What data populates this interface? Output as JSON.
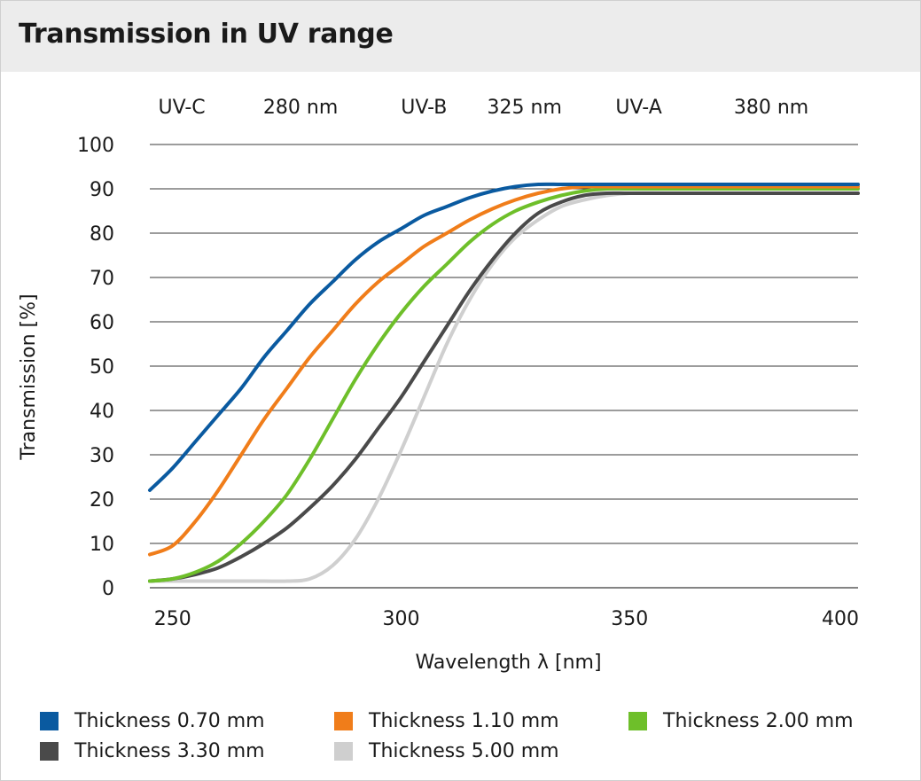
{
  "title": "Transmission in UV range",
  "chart_data": {
    "type": "line",
    "title": "Transmission in UV range",
    "xlabel": "Wavelength λ [nm]",
    "ylabel": "Transmission [%]",
    "xlim": [
      245,
      400
    ],
    "ylim": [
      0,
      100
    ],
    "xticks": [
      250,
      300,
      350,
      400
    ],
    "yticks": [
      0,
      10,
      20,
      30,
      40,
      50,
      60,
      70,
      80,
      90,
      100
    ],
    "grid": "horizontal",
    "legend_position": "bottom",
    "top_labels": [
      "UV-C",
      "280 nm",
      "UV-B",
      "325 nm",
      "UV-A",
      "380 nm"
    ],
    "top_label_x": [
      252,
      278,
      305,
      327,
      352,
      381
    ],
    "series": [
      {
        "name": "Thickness 0.70 mm",
        "color": "#0a5aa0",
        "x": [
          245,
          250,
          255,
          260,
          265,
          270,
          275,
          280,
          285,
          290,
          295,
          300,
          305,
          310,
          315,
          320,
          325,
          330,
          335,
          340,
          350,
          360,
          380,
          400
        ],
        "y": [
          22,
          27,
          33,
          39,
          45,
          52,
          58,
          64,
          69,
          74,
          78,
          81,
          84,
          86,
          88,
          89.5,
          90.5,
          91,
          91,
          91,
          91,
          91,
          91,
          91
        ]
      },
      {
        "name": "Thickness 1.10 mm",
        "color": "#f07d1a",
        "x": [
          245,
          250,
          255,
          260,
          265,
          270,
          275,
          280,
          285,
          290,
          295,
          300,
          305,
          310,
          315,
          320,
          325,
          330,
          335,
          340,
          345,
          350,
          360,
          380,
          400
        ],
        "y": [
          7.5,
          9.5,
          15,
          22,
          30,
          38,
          45,
          52,
          58,
          64,
          69,
          73,
          77,
          80,
          83,
          85.5,
          87.5,
          89,
          90,
          90.5,
          90.5,
          90.5,
          90.5,
          90.5,
          90.5
        ]
      },
      {
        "name": "Thickness 2.00 mm",
        "color": "#6ebf2a",
        "x": [
          245,
          250,
          255,
          260,
          265,
          270,
          275,
          280,
          285,
          290,
          295,
          300,
          305,
          310,
          315,
          320,
          325,
          330,
          335,
          340,
          345,
          350,
          360,
          380,
          400
        ],
        "y": [
          1.5,
          2,
          3.5,
          6,
          10,
          15,
          21,
          29,
          38,
          47,
          55,
          62,
          68,
          73,
          78,
          82,
          85,
          87,
          88.5,
          89.5,
          90,
          90,
          90,
          90,
          90
        ]
      },
      {
        "name": "Thickness 3.30 mm",
        "color": "#4a4a4a",
        "x": [
          245,
          250,
          255,
          260,
          265,
          270,
          275,
          280,
          285,
          290,
          295,
          300,
          305,
          310,
          315,
          320,
          325,
          330,
          335,
          340,
          345,
          350,
          360,
          380,
          400
        ],
        "y": [
          1.5,
          2,
          3,
          4.5,
          7,
          10,
          13.5,
          18,
          23,
          29,
          36,
          43,
          51,
          59,
          67,
          74,
          80,
          84.5,
          87,
          88.5,
          89,
          89,
          89,
          89,
          89
        ]
      },
      {
        "name": "Thickness 5.00 mm",
        "color": "#cfcfcf",
        "x": [
          245,
          250,
          255,
          260,
          265,
          270,
          275,
          280,
          285,
          290,
          295,
          300,
          305,
          310,
          315,
          320,
          325,
          330,
          335,
          340,
          345,
          350,
          360,
          380,
          400
        ],
        "y": [
          1.5,
          1.5,
          1.5,
          1.5,
          1.5,
          1.5,
          1.5,
          2,
          5,
          11,
          20,
          31,
          43,
          55,
          65,
          73,
          79,
          83,
          86,
          87.5,
          88.5,
          89,
          89,
          89,
          89
        ]
      }
    ]
  }
}
